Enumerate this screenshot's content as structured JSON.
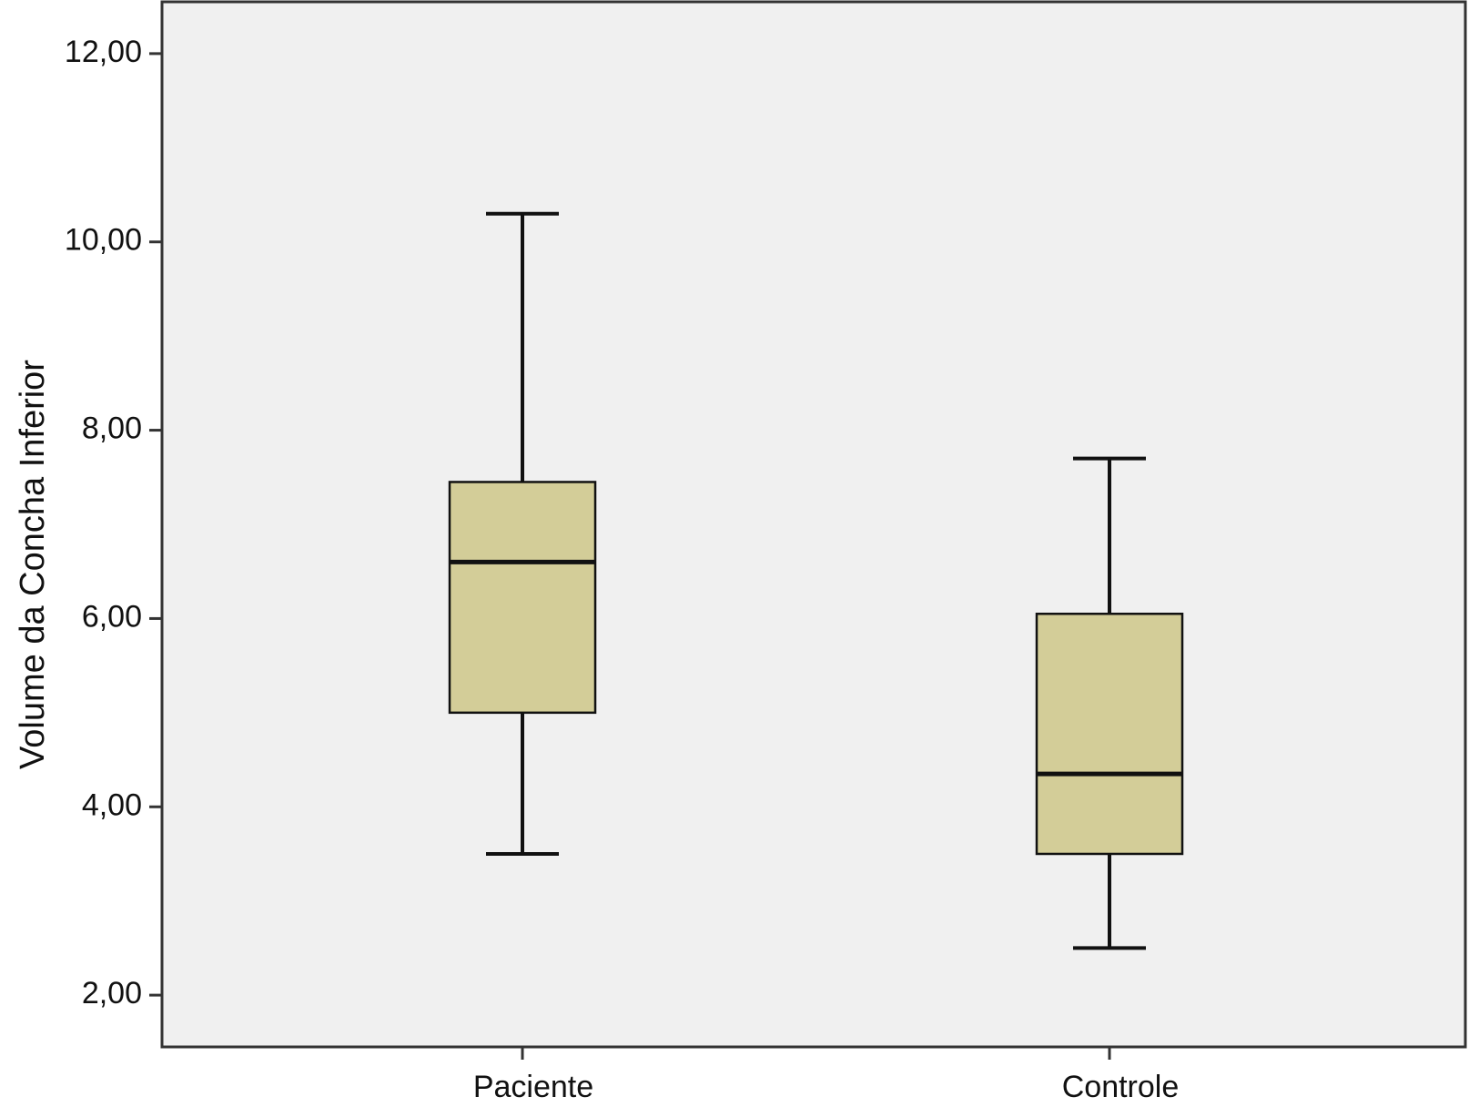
{
  "chart_data": {
    "type": "boxplot",
    "title": "",
    "xlabel": "",
    "ylabel": "Volume da Concha Inferior",
    "ylim": [
      1.45,
      12.55
    ],
    "yticks": [
      2,
      4,
      6,
      8,
      10,
      12
    ],
    "ytick_labels": [
      "2,00",
      "4,00",
      "6,00",
      "8,00",
      "10,00",
      "12,00"
    ],
    "categories": [
      "Paciente",
      "Controle"
    ],
    "boxes": [
      {
        "category": "Paciente",
        "whisker_low": 3.5,
        "q1": 5.0,
        "median": 6.6,
        "q3": 7.45,
        "whisker_high": 10.3
      },
      {
        "category": "Controle",
        "whisker_low": 2.5,
        "q1": 3.5,
        "median": 4.35,
        "q3": 6.05,
        "whisker_high": 7.7
      }
    ],
    "grid": false,
    "colors": {
      "box_fill": "#d3cd98",
      "plot_background": "#f0f0f0",
      "line": "#111111"
    }
  }
}
